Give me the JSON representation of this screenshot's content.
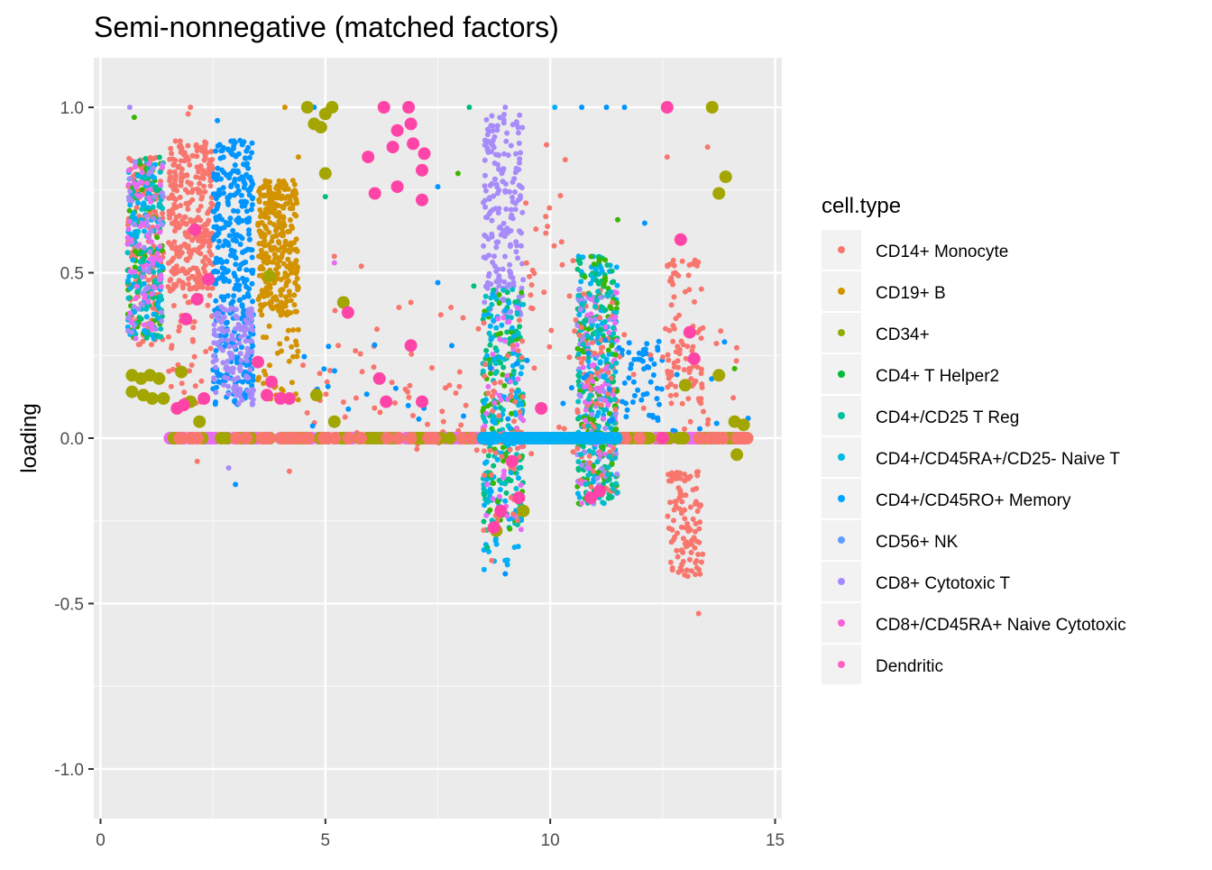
{
  "chart_data": {
    "type": "scatter",
    "title": "Semi-nonnegative (matched factors)",
    "xlabel": "",
    "ylabel": "loading",
    "xlim": [
      -0.15,
      15.15
    ],
    "ylim": [
      -1.15,
      1.15
    ],
    "x_ticks": [
      0,
      5,
      10,
      15
    ],
    "x_tick_labels": [
      "0",
      "5",
      "10",
      "15"
    ],
    "y_ticks": [
      -1.0,
      -0.5,
      0.0,
      0.5,
      1.0
    ],
    "y_tick_labels": [
      "-1.0",
      "-0.5",
      "0.0",
      "0.5",
      "1.0"
    ],
    "grid": true,
    "legend": {
      "title": "cell.type",
      "position": "right",
      "entries": [
        {
          "name": "CD14+ Monocyte",
          "color": "#F8766D"
        },
        {
          "name": "CD19+ B",
          "color": "#D39200"
        },
        {
          "name": "CD34+",
          "color": "#93AA00"
        },
        {
          "name": "CD4+ T Helper2",
          "color": "#00BA38"
        },
        {
          "name": "CD4+/CD25 T Reg",
          "color": "#00C19F"
        },
        {
          "name": "CD4+/CD45RA+/CD25- Naive T",
          "color": "#00B9E3"
        },
        {
          "name": "CD4+/CD45RO+ Memory",
          "color": "#00A5FF"
        },
        {
          "name": "CD56+ NK",
          "color": "#619CFF"
        },
        {
          "name": "CD8+ Cytotoxic T",
          "color": "#A58AFF"
        },
        {
          "name": "CD8+/CD45RA+ Naive Cytotoxic",
          "color": "#FB61D7"
        },
        {
          "name": "Dendritic",
          "color": "#FF61C3"
        }
      ]
    },
    "series_colors": {
      "CD14+ Monocyte": "#F8766D",
      "CD19+ B": "#D39200",
      "CD34+": "#A3A500",
      "CD4+ T Helper2": "#39B600",
      "CD4+/CD25 T Reg": "#00BF7D",
      "CD4+/CD45RA+/CD25- Naive T": "#00BFC4",
      "CD4+/CD45RO+ Memory": "#00B0F6",
      "CD56+ NK": "#0095FF",
      "CD8+ Cytotoxic T": "#A78BFA",
      "CD8+/CD45RA+ Naive Cytotoxic": "#E76BF3",
      "Dendritic": "#FF44A8"
    },
    "clusters": [
      {
        "series": "CD14+ Monocyte",
        "x": [
          0.6,
          1.4
        ],
        "y": [
          0.28,
          0.85
        ],
        "n": 180,
        "size": "small"
      },
      {
        "series": "CD4+ T Helper2",
        "x": [
          0.6,
          1.4
        ],
        "y": [
          0.3,
          0.85
        ],
        "n": 60,
        "size": "small"
      },
      {
        "series": "CD4+/CD25 T Reg",
        "x": [
          0.6,
          1.4
        ],
        "y": [
          0.3,
          0.85
        ],
        "n": 60,
        "size": "small"
      },
      {
        "series": "CD4+/CD45RA+/CD25- Naive T",
        "x": [
          0.6,
          1.4
        ],
        "y": [
          0.3,
          0.85
        ],
        "n": 70,
        "size": "small"
      },
      {
        "series": "CD4+/CD45RO+ Memory",
        "x": [
          0.6,
          1.4
        ],
        "y": [
          0.3,
          0.85
        ],
        "n": 60,
        "size": "small"
      },
      {
        "series": "CD8+ Cytotoxic T",
        "x": [
          0.6,
          1.4
        ],
        "y": [
          0.3,
          0.85
        ],
        "n": 50,
        "size": "small"
      },
      {
        "series": "CD8+/CD45RA+ Naive Cytotoxic",
        "x": [
          0.6,
          1.4
        ],
        "y": [
          0.3,
          0.85
        ],
        "n": 60,
        "size": "small"
      },
      {
        "series": "CD14+ Monocyte",
        "x": [
          1.5,
          2.5
        ],
        "y": [
          0.45,
          0.9
        ],
        "n": 320,
        "size": "small"
      },
      {
        "series": "CD14+ Monocyte",
        "x": [
          1.5,
          2.5
        ],
        "y": [
          0.1,
          0.45
        ],
        "n": 40,
        "size": "small"
      },
      {
        "series": "CD56+ NK",
        "x": [
          2.5,
          3.4
        ],
        "y": [
          0.1,
          0.9
        ],
        "n": 360,
        "size": "small"
      },
      {
        "series": "CD8+ Cytotoxic T",
        "x": [
          2.5,
          3.4
        ],
        "y": [
          0.1,
          0.4
        ],
        "n": 130,
        "size": "small"
      },
      {
        "series": "CD19+ B",
        "x": [
          3.5,
          4.4
        ],
        "y": [
          0.38,
          0.78
        ],
        "n": 300,
        "size": "small"
      },
      {
        "series": "CD19+ B",
        "x": [
          3.5,
          4.4
        ],
        "y": [
          0.1,
          0.38
        ],
        "n": 40,
        "size": "small"
      },
      {
        "series": "CD8+ Cytotoxic T",
        "x": [
          8.5,
          9.4
        ],
        "y": [
          0.35,
          0.98
        ],
        "n": 200,
        "size": "small"
      },
      {
        "series": "CD4+/CD25 T Reg",
        "x": [
          8.5,
          9.4
        ],
        "y": [
          -0.28,
          0.45
        ],
        "n": 90,
        "size": "small"
      },
      {
        "series": "CD4+/CD45RA+/CD25- Naive T",
        "x": [
          8.5,
          9.4
        ],
        "y": [
          -0.28,
          0.45
        ],
        "n": 90,
        "size": "small"
      },
      {
        "series": "CD4+ T Helper2",
        "x": [
          8.5,
          9.4
        ],
        "y": [
          -0.28,
          0.45
        ],
        "n": 60,
        "size": "small"
      },
      {
        "series": "CD4+/CD45RO+ Memory",
        "x": [
          8.5,
          9.4
        ],
        "y": [
          -0.4,
          0.45
        ],
        "n": 90,
        "size": "small"
      },
      {
        "series": "CD8+/CD45RA+ Naive Cytotoxic",
        "x": [
          8.5,
          9.4
        ],
        "y": [
          -0.28,
          0.4
        ],
        "n": 40,
        "size": "small"
      },
      {
        "series": "CD14+ Monocyte",
        "x": [
          8.5,
          9.4
        ],
        "y": [
          -0.28,
          0.3
        ],
        "n": 40,
        "size": "small"
      },
      {
        "series": "CD4+/CD45RO+ Memory",
        "x": [
          10.6,
          11.5
        ],
        "y": [
          -0.2,
          0.55
        ],
        "n": 170,
        "size": "small"
      },
      {
        "series": "CD4+/CD25 T Reg",
        "x": [
          10.6,
          11.5
        ],
        "y": [
          -0.2,
          0.55
        ],
        "n": 120,
        "size": "small"
      },
      {
        "series": "CD4+ T Helper2",
        "x": [
          10.6,
          11.5
        ],
        "y": [
          -0.2,
          0.55
        ],
        "n": 90,
        "size": "small"
      },
      {
        "series": "CD8+ Cytotoxic T",
        "x": [
          10.6,
          11.5
        ],
        "y": [
          -0.2,
          0.45
        ],
        "n": 70,
        "size": "small"
      },
      {
        "series": "CD14+ Monocyte",
        "x": [
          10.6,
          11.5
        ],
        "y": [
          -0.2,
          0.45
        ],
        "n": 70,
        "size": "small"
      },
      {
        "series": "CD8+/CD45RA+ Naive Cytotoxic",
        "x": [
          10.6,
          11.5
        ],
        "y": [
          -0.2,
          0.45
        ],
        "n": 60,
        "size": "small"
      },
      {
        "series": "CD4+/CD45RA+/CD25- Naive T",
        "x": [
          10.6,
          11.5
        ],
        "y": [
          -0.2,
          0.5
        ],
        "n": 60,
        "size": "small"
      },
      {
        "series": "CD14+ Monocyte",
        "x": [
          12.6,
          13.4
        ],
        "y": [
          0.1,
          0.55
        ],
        "n": 80,
        "size": "small"
      },
      {
        "series": "CD14+ Monocyte",
        "x": [
          12.6,
          13.4
        ],
        "y": [
          -0.42,
          -0.1
        ],
        "n": 110,
        "size": "small"
      },
      {
        "series": "CD56+ NK",
        "x": [
          11.5,
          12.5
        ],
        "y": [
          0.05,
          0.3
        ],
        "n": 50,
        "size": "small"
      },
      {
        "series": "CD14+ Monocyte",
        "x": [
          4.5,
          14.3
        ],
        "y": [
          -0.05,
          0.4
        ],
        "n": 120,
        "size": "small"
      },
      {
        "series": "CD56+ NK",
        "x": [
          4.5,
          14.3
        ],
        "y": [
          0.0,
          0.3
        ],
        "n": 40,
        "size": "small"
      },
      {
        "series": "CD14+ Monocyte",
        "x": [
          9.4,
          10.6
        ],
        "y": [
          0.3,
          0.9
        ],
        "n": 25,
        "size": "small"
      },
      {
        "series": "CD8+/CD45RA+ Naive Cytotoxic",
        "x": [
          1.5,
          14.4
        ],
        "y": [
          0.0,
          0.0
        ],
        "n": 220,
        "size": "large"
      },
      {
        "series": "CD34+",
        "x": [
          1.5,
          14.4
        ],
        "y": [
          0.0,
          0.0
        ],
        "n": 90,
        "size": "large"
      },
      {
        "series": "CD14+ Monocyte",
        "x": [
          1.5,
          14.4
        ],
        "y": [
          0.0,
          0.0
        ],
        "n": 60,
        "size": "large"
      },
      {
        "series": "CD4+/CD45RO+ Memory",
        "x": [
          8.5,
          11.5
        ],
        "y": [
          0.0,
          0.0
        ],
        "n": 60,
        "size": "large"
      }
    ],
    "points_large": [
      {
        "series": "CD34+",
        "x": 0.7,
        "y": 0.19
      },
      {
        "series": "CD34+",
        "x": 0.9,
        "y": 0.18
      },
      {
        "series": "CD34+",
        "x": 1.1,
        "y": 0.19
      },
      {
        "series": "CD34+",
        "x": 1.3,
        "y": 0.18
      },
      {
        "series": "CD34+",
        "x": 0.7,
        "y": 0.14
      },
      {
        "series": "CD34+",
        "x": 0.95,
        "y": 0.13
      },
      {
        "series": "CD34+",
        "x": 1.15,
        "y": 0.12
      },
      {
        "series": "CD34+",
        "x": 1.4,
        "y": 0.12
      },
      {
        "series": "CD34+",
        "x": 2.0,
        "y": 0.11
      },
      {
        "series": "CD34+",
        "x": 1.8,
        "y": 0.2
      },
      {
        "series": "CD34+",
        "x": 2.2,
        "y": 0.05
      },
      {
        "series": "CD34+",
        "x": 4.6,
        "y": 1.0
      },
      {
        "series": "CD34+",
        "x": 4.75,
        "y": 0.95
      },
      {
        "series": "CD34+",
        "x": 4.9,
        "y": 0.94
      },
      {
        "series": "CD34+",
        "x": 5.0,
        "y": 0.98
      },
      {
        "series": "CD34+",
        "x": 5.15,
        "y": 1.0
      },
      {
        "series": "CD34+",
        "x": 5.0,
        "y": 0.8
      },
      {
        "series": "CD34+",
        "x": 5.4,
        "y": 0.41
      },
      {
        "series": "CD34+",
        "x": 3.75,
        "y": 0.49
      },
      {
        "series": "CD34+",
        "x": 4.8,
        "y": 0.13
      },
      {
        "series": "CD34+",
        "x": 5.2,
        "y": 0.05
      },
      {
        "series": "CD34+",
        "x": 9.4,
        "y": -0.22
      },
      {
        "series": "CD34+",
        "x": 8.8,
        "y": -0.28
      },
      {
        "series": "CD34+",
        "x": 13.6,
        "y": 1.0
      },
      {
        "series": "CD34+",
        "x": 13.9,
        "y": 0.79
      },
      {
        "series": "CD34+",
        "x": 13.75,
        "y": 0.74
      },
      {
        "series": "CD34+",
        "x": 13.75,
        "y": 0.19
      },
      {
        "series": "CD34+",
        "x": 13.0,
        "y": 0.16
      },
      {
        "series": "CD34+",
        "x": 14.15,
        "y": -0.05
      },
      {
        "series": "CD34+",
        "x": 14.1,
        "y": 0.05
      },
      {
        "series": "CD34+",
        "x": 14.3,
        "y": 0.04
      },
      {
        "series": "Dendritic",
        "x": 6.3,
        "y": 1.0
      },
      {
        "series": "Dendritic",
        "x": 6.85,
        "y": 1.0
      },
      {
        "series": "Dendritic",
        "x": 6.9,
        "y": 0.95
      },
      {
        "series": "Dendritic",
        "x": 6.6,
        "y": 0.93
      },
      {
        "series": "Dendritic",
        "x": 6.5,
        "y": 0.88
      },
      {
        "series": "Dendritic",
        "x": 6.95,
        "y": 0.89
      },
      {
        "series": "Dendritic",
        "x": 7.2,
        "y": 0.86
      },
      {
        "series": "Dendritic",
        "x": 5.95,
        "y": 0.85
      },
      {
        "series": "Dendritic",
        "x": 7.15,
        "y": 0.81
      },
      {
        "series": "Dendritic",
        "x": 6.1,
        "y": 0.74
      },
      {
        "series": "Dendritic",
        "x": 6.6,
        "y": 0.76
      },
      {
        "series": "Dendritic",
        "x": 7.15,
        "y": 0.72
      },
      {
        "series": "Dendritic",
        "x": 5.5,
        "y": 0.38
      },
      {
        "series": "Dendritic",
        "x": 6.9,
        "y": 0.28
      },
      {
        "series": "Dendritic",
        "x": 6.2,
        "y": 0.18
      },
      {
        "series": "Dendritic",
        "x": 6.35,
        "y": 0.11
      },
      {
        "series": "Dendritic",
        "x": 7.15,
        "y": 0.11
      },
      {
        "series": "Dendritic",
        "x": 12.6,
        "y": 1.0
      },
      {
        "series": "Dendritic",
        "x": 12.9,
        "y": 0.6
      },
      {
        "series": "Dendritic",
        "x": 13.1,
        "y": 0.32
      },
      {
        "series": "Dendritic",
        "x": 13.2,
        "y": 0.24
      },
      {
        "series": "Dendritic",
        "x": 1.9,
        "y": 0.36
      },
      {
        "series": "Dendritic",
        "x": 2.15,
        "y": 0.42
      },
      {
        "series": "Dendritic",
        "x": 2.4,
        "y": 0.48
      },
      {
        "series": "Dendritic",
        "x": 2.1,
        "y": 0.63
      },
      {
        "series": "Dendritic",
        "x": 1.7,
        "y": 0.09
      },
      {
        "series": "Dendritic",
        "x": 1.85,
        "y": 0.1
      },
      {
        "series": "Dendritic",
        "x": 2.3,
        "y": 0.12
      },
      {
        "series": "Dendritic",
        "x": 3.5,
        "y": 0.23
      },
      {
        "series": "Dendritic",
        "x": 3.8,
        "y": 0.17
      },
      {
        "series": "Dendritic",
        "x": 3.7,
        "y": 0.13
      },
      {
        "series": "Dendritic",
        "x": 4.0,
        "y": 0.12
      },
      {
        "series": "Dendritic",
        "x": 4.2,
        "y": 0.12
      },
      {
        "series": "Dendritic",
        "x": 8.9,
        "y": -0.22
      },
      {
        "series": "Dendritic",
        "x": 9.3,
        "y": -0.18
      },
      {
        "series": "Dendritic",
        "x": 8.75,
        "y": -0.27
      },
      {
        "series": "Dendritic",
        "x": 9.15,
        "y": -0.07
      },
      {
        "series": "Dendritic",
        "x": 9.8,
        "y": 0.09
      },
      {
        "series": "Dendritic",
        "x": 10.9,
        "y": -0.18
      },
      {
        "series": "Dendritic",
        "x": 11.1,
        "y": -0.16
      },
      {
        "series": "Dendritic",
        "x": 12.5,
        "y": 0.0
      }
    ],
    "points_small": [
      {
        "series": "CD4+ T Helper2",
        "x": 0.75,
        "y": 0.97
      },
      {
        "series": "CD8+ Cytotoxic T",
        "x": 0.65,
        "y": 1.0
      },
      {
        "series": "CD14+ Monocyte",
        "x": 2.0,
        "y": 1.0
      },
      {
        "series": "CD14+ Monocyte",
        "x": 1.95,
        "y": 0.98
      },
      {
        "series": "CD56+ NK",
        "x": 2.6,
        "y": 0.96
      },
      {
        "series": "CD19+ B",
        "x": 4.1,
        "y": 1.0
      },
      {
        "series": "CD19+ B",
        "x": 4.4,
        "y": 0.85
      },
      {
        "series": "CD56+ NK",
        "x": 4.75,
        "y": 1.0
      },
      {
        "series": "CD8+ Cytotoxic T",
        "x": 9.0,
        "y": 1.0
      },
      {
        "series": "CD4+/CD25 T Reg",
        "x": 8.2,
        "y": 1.0
      },
      {
        "series": "CD4+ T Helper2",
        "x": 7.95,
        "y": 0.8
      },
      {
        "series": "CD56+ NK",
        "x": 10.7,
        "y": 1.0
      },
      {
        "series": "CD56+ NK",
        "x": 11.25,
        "y": 1.0
      },
      {
        "series": "CD56+ NK",
        "x": 11.65,
        "y": 1.0
      },
      {
        "series": "CD4+/CD45RO+ Memory",
        "x": 10.1,
        "y": 1.0
      },
      {
        "series": "CD4+ T Helper2",
        "x": 11.5,
        "y": 0.66
      },
      {
        "series": "CD56+ NK",
        "x": 12.1,
        "y": 0.65
      },
      {
        "series": "CD56+ NK",
        "x": 7.5,
        "y": 0.76
      },
      {
        "series": "CD14+ Monocyte",
        "x": 13.5,
        "y": 0.88
      },
      {
        "series": "CD14+ Monocyte",
        "x": 12.6,
        "y": 0.85
      },
      {
        "series": "CD14+ Monocyte",
        "x": 13.3,
        "y": -0.53
      },
      {
        "series": "CD56+ NK",
        "x": 9.0,
        "y": -0.41
      },
      {
        "series": "CD56+ NK",
        "x": 3.0,
        "y": -0.14
      },
      {
        "series": "CD8+ Cytotoxic T",
        "x": 2.85,
        "y": -0.09
      },
      {
        "series": "CD14+ Monocyte",
        "x": 2.15,
        "y": -0.07
      },
      {
        "series": "CD14+ Monocyte",
        "x": 4.2,
        "y": -0.1
      },
      {
        "series": "CD4+/CD25 T Reg",
        "x": 8.6,
        "y": -0.33
      },
      {
        "series": "CD14+ Monocyte",
        "x": 8.7,
        "y": -0.37
      },
      {
        "series": "CD56+ NK",
        "x": 14.4,
        "y": 0.06
      },
      {
        "series": "CD4+ T Helper2",
        "x": 14.1,
        "y": 0.21
      },
      {
        "series": "CD4+/CD25 T Reg",
        "x": 5.0,
        "y": 0.73
      },
      {
        "series": "CD14+ Monocyte",
        "x": 5.2,
        "y": 0.55
      },
      {
        "series": "CD8+/CD45RA+ Naive Cytotoxic",
        "x": 5.2,
        "y": 0.53
      },
      {
        "series": "CD14+ Monocyte",
        "x": 5.8,
        "y": 0.52
      },
      {
        "series": "CD56+ NK",
        "x": 7.5,
        "y": 0.47
      },
      {
        "series": "CD14+ Monocyte",
        "x": 6.9,
        "y": 0.41
      },
      {
        "series": "CD4+/CD25 T Reg",
        "x": 8.3,
        "y": 0.46
      },
      {
        "series": "CD14+ Monocyte",
        "x": 9.9,
        "y": 0.67
      }
    ]
  }
}
